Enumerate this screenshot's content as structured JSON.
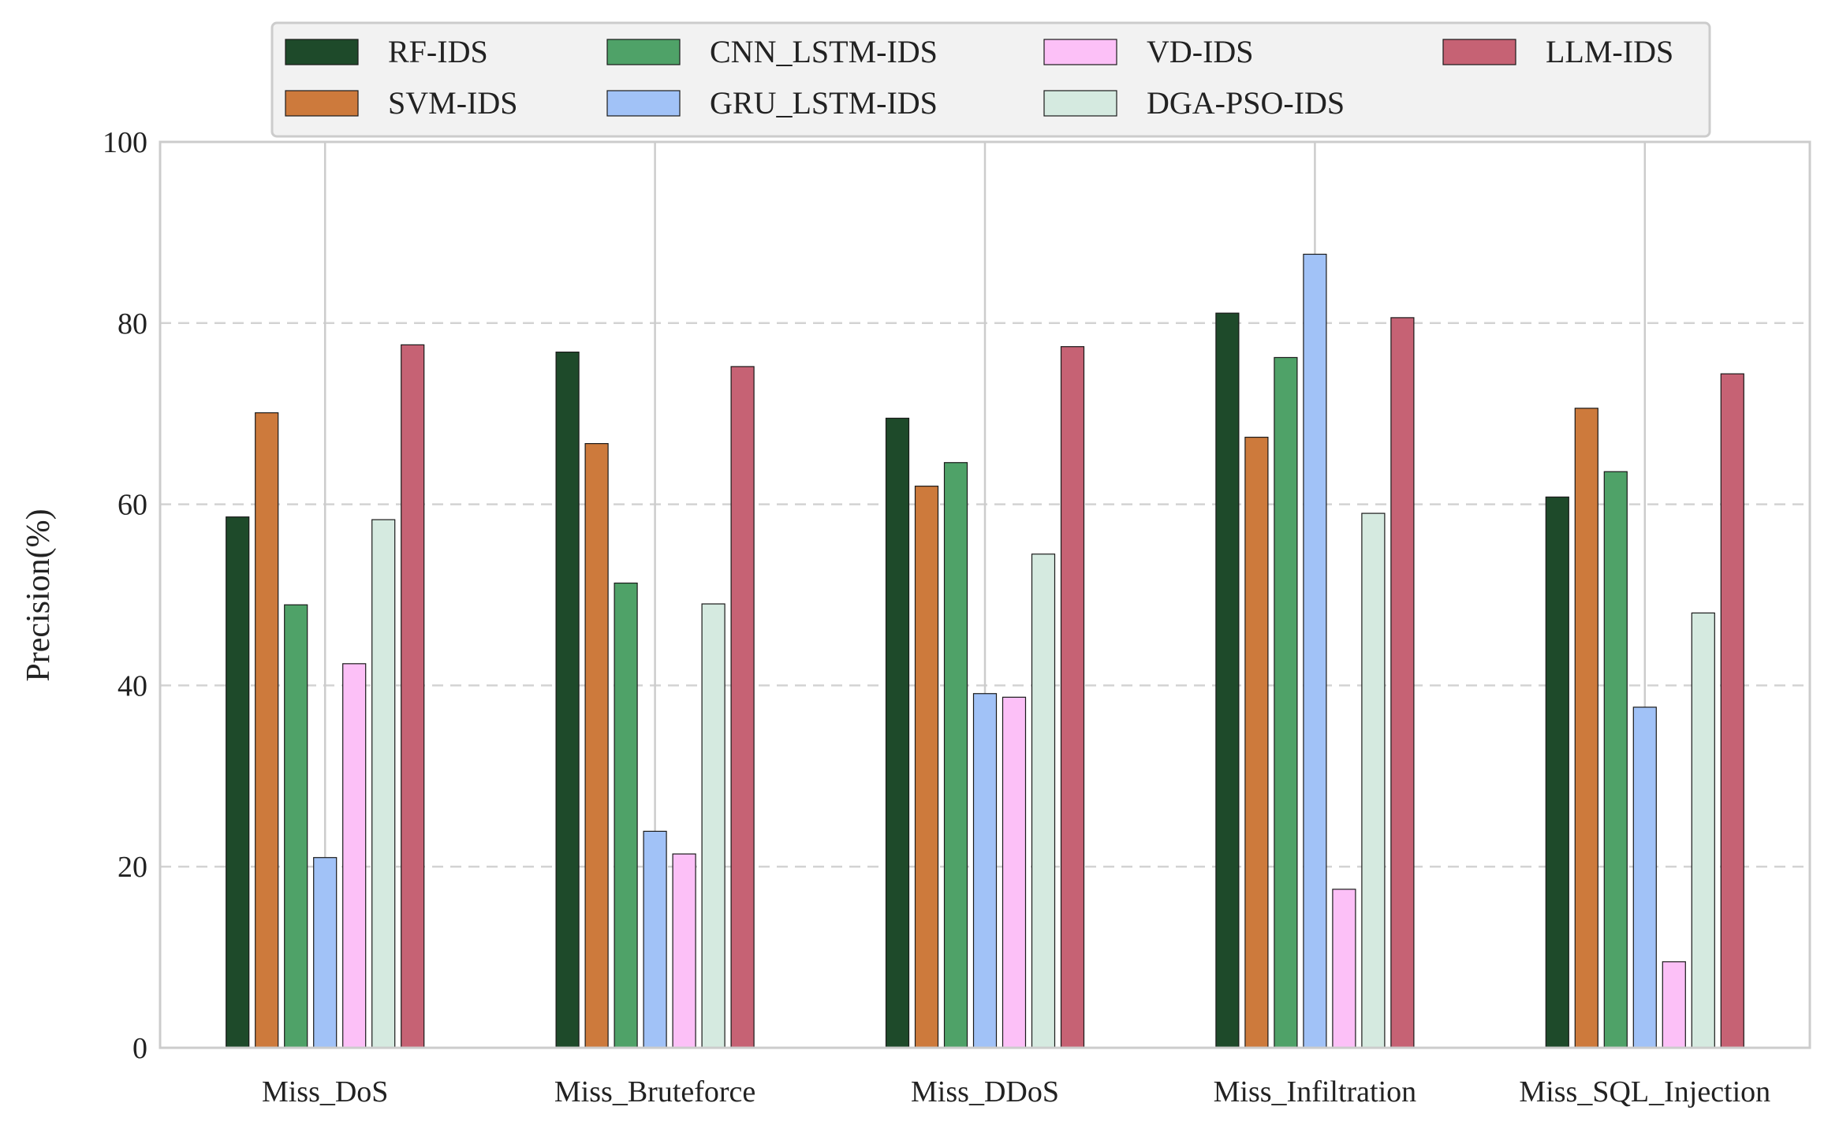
{
  "chart_data": {
    "type": "bar",
    "title": "",
    "xlabel": "",
    "ylabel": "Precision(%)",
    "ylim": [
      0,
      100
    ],
    "yticks": [
      0,
      20,
      40,
      60,
      80,
      100
    ],
    "grid": "horizontal-dashed",
    "legend_position": "top-center",
    "categories": [
      "Miss_DoS",
      "Miss_Bruteforce",
      "Miss_DDoS",
      "Miss_Infiltration",
      "Miss_SQL_Injection"
    ],
    "series": [
      {
        "name": "RF-IDS",
        "color": "#1e4a2a",
        "values": [
          58.6,
          76.8,
          69.5,
          81.1,
          60.8
        ]
      },
      {
        "name": "SVM-IDS",
        "color": "#cd7a3c",
        "values": [
          70.1,
          66.7,
          62.0,
          67.4,
          70.6
        ]
      },
      {
        "name": "CNN_LSTM-IDS",
        "color": "#4fa268",
        "values": [
          48.9,
          51.3,
          64.6,
          76.2,
          63.6
        ]
      },
      {
        "name": "GRU_LSTM-IDS",
        "color": "#a1c2f7",
        "values": [
          21.0,
          23.9,
          39.1,
          87.6,
          37.6
        ]
      },
      {
        "name": "VD-IDS",
        "color": "#fcc0f7",
        "values": [
          42.4,
          21.4,
          38.7,
          17.5,
          9.5
        ]
      },
      {
        "name": "DGA-PSO-IDS",
        "color": "#d5eae0",
        "values": [
          58.3,
          49.0,
          54.5,
          59.0,
          48.0
        ]
      },
      {
        "name": "LLM-IDS",
        "color": "#c66274",
        "values": [
          77.6,
          75.2,
          77.4,
          80.6,
          74.4
        ]
      }
    ]
  }
}
